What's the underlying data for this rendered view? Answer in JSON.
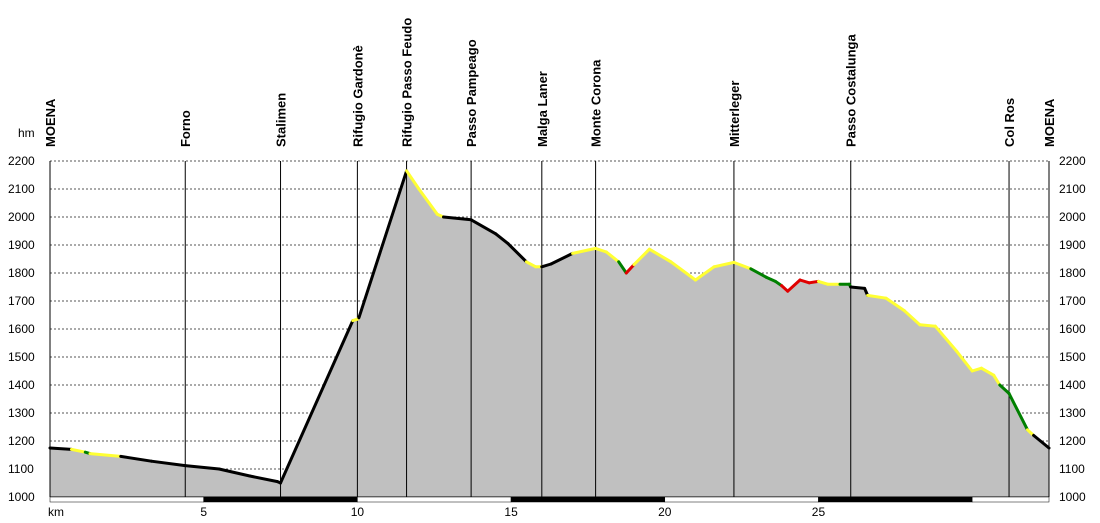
{
  "chart_data": {
    "type": "area",
    "y_unit": "hm",
    "x_unit": "km",
    "xlim": [
      0,
      32.5
    ],
    "ylim": [
      1000,
      2200
    ],
    "grid": true,
    "y_ticks": [
      1000,
      1100,
      1200,
      1300,
      1400,
      1500,
      1600,
      1700,
      1800,
      1900,
      2000,
      2100,
      2200
    ],
    "x_ticks": [
      5,
      10,
      15,
      20,
      25
    ],
    "fill_color": "#c0c0c0",
    "difficulty_colors": {
      "easy": "#ffff33",
      "medium": "#008000",
      "hard": "#e00000",
      "road": "#000000"
    },
    "waypoints": [
      {
        "name": "MOENA",
        "x": 0.0
      },
      {
        "name": "Forno",
        "x": 4.4
      },
      {
        "name": "Stalimen",
        "x": 7.5
      },
      {
        "name": "Rifugio Gardonè",
        "x": 10.0
      },
      {
        "name": "Rifugio Passo Feudo",
        "x": 11.6
      },
      {
        "name": "Passo Pampeago",
        "x": 13.7
      },
      {
        "name": "Malga Laner",
        "x": 16.0
      },
      {
        "name": "Monte Corona",
        "x": 17.75
      },
      {
        "name": "Mitterleger",
        "x": 22.25
      },
      {
        "name": "Passo Costalunga",
        "x": 26.05
      },
      {
        "name": "Col Ros",
        "x": 31.2
      },
      {
        "name": "MOENA",
        "x": 32.5
      }
    ],
    "profile": [
      {
        "x": 0.0,
        "y": 1175,
        "c": "road"
      },
      {
        "x": 0.7,
        "y": 1170,
        "c": "easy"
      },
      {
        "x": 1.15,
        "y": 1160,
        "c": "medium"
      },
      {
        "x": 1.3,
        "y": 1155,
        "c": "easy"
      },
      {
        "x": 2.3,
        "y": 1145,
        "c": "road"
      },
      {
        "x": 3.3,
        "y": 1128,
        "c": "road"
      },
      {
        "x": 4.4,
        "y": 1112,
        "c": "road"
      },
      {
        "x": 5.5,
        "y": 1100,
        "c": "road"
      },
      {
        "x": 6.5,
        "y": 1075,
        "c": "road"
      },
      {
        "x": 7.4,
        "y": 1055,
        "c": "road"
      },
      {
        "x": 7.5,
        "y": 1050,
        "c": "road"
      },
      {
        "x": 9.85,
        "y": 1630,
        "c": "easy"
      },
      {
        "x": 10.0,
        "y": 1635,
        "c": "easy"
      },
      {
        "x": 10.05,
        "y": 1640,
        "c": "road"
      },
      {
        "x": 11.6,
        "y": 2165,
        "c": "easy"
      },
      {
        "x": 12.0,
        "y": 2100,
        "c": "easy"
      },
      {
        "x": 12.6,
        "y": 2010,
        "c": "easy"
      },
      {
        "x": 12.8,
        "y": 2000,
        "c": "road"
      },
      {
        "x": 13.7,
        "y": 1990,
        "c": "road"
      },
      {
        "x": 14.5,
        "y": 1940,
        "c": "road"
      },
      {
        "x": 14.9,
        "y": 1905,
        "c": "road"
      },
      {
        "x": 15.5,
        "y": 1840,
        "c": "easy"
      },
      {
        "x": 15.8,
        "y": 1822,
        "c": "easy"
      },
      {
        "x": 16.0,
        "y": 1822,
        "c": "road"
      },
      {
        "x": 16.3,
        "y": 1832,
        "c": "road"
      },
      {
        "x": 17.0,
        "y": 1870,
        "c": "easy"
      },
      {
        "x": 17.75,
        "y": 1888,
        "c": "easy"
      },
      {
        "x": 18.1,
        "y": 1875,
        "c": "easy"
      },
      {
        "x": 18.5,
        "y": 1840,
        "c": "medium"
      },
      {
        "x": 18.75,
        "y": 1800,
        "c": "hard"
      },
      {
        "x": 19.0,
        "y": 1830,
        "c": "easy"
      },
      {
        "x": 19.5,
        "y": 1885,
        "c": "easy"
      },
      {
        "x": 20.2,
        "y": 1840,
        "c": "easy"
      },
      {
        "x": 21.0,
        "y": 1775,
        "c": "easy"
      },
      {
        "x": 21.6,
        "y": 1822,
        "c": "easy"
      },
      {
        "x": 22.25,
        "y": 1838,
        "c": "easy"
      },
      {
        "x": 22.8,
        "y": 1815,
        "c": "medium"
      },
      {
        "x": 23.3,
        "y": 1785,
        "c": "medium"
      },
      {
        "x": 23.6,
        "y": 1770,
        "c": "medium"
      },
      {
        "x": 23.8,
        "y": 1755,
        "c": "hard"
      },
      {
        "x": 24.0,
        "y": 1735,
        "c": "hard"
      },
      {
        "x": 24.4,
        "y": 1775,
        "c": "hard"
      },
      {
        "x": 24.7,
        "y": 1765,
        "c": "hard"
      },
      {
        "x": 25.0,
        "y": 1770,
        "c": "easy"
      },
      {
        "x": 25.3,
        "y": 1760,
        "c": "easy"
      },
      {
        "x": 25.7,
        "y": 1760,
        "c": "medium"
      },
      {
        "x": 26.0,
        "y": 1760,
        "c": "medium"
      },
      {
        "x": 26.05,
        "y": 1750,
        "c": "road"
      },
      {
        "x": 26.5,
        "y": 1745,
        "c": "road"
      },
      {
        "x": 26.6,
        "y": 1720,
        "c": "easy"
      },
      {
        "x": 27.2,
        "y": 1710,
        "c": "easy"
      },
      {
        "x": 27.8,
        "y": 1665,
        "c": "easy"
      },
      {
        "x": 28.3,
        "y": 1615,
        "c": "easy"
      },
      {
        "x": 28.8,
        "y": 1610,
        "c": "easy"
      },
      {
        "x": 29.5,
        "y": 1520,
        "c": "easy"
      },
      {
        "x": 30.0,
        "y": 1450,
        "c": "easy"
      },
      {
        "x": 30.3,
        "y": 1460,
        "c": "easy"
      },
      {
        "x": 30.7,
        "y": 1435,
        "c": "easy"
      },
      {
        "x": 30.9,
        "y": 1400,
        "c": "medium"
      },
      {
        "x": 31.2,
        "y": 1370,
        "c": "medium"
      },
      {
        "x": 31.8,
        "y": 1240,
        "c": "easy"
      },
      {
        "x": 32.0,
        "y": 1220,
        "c": "road"
      },
      {
        "x": 32.5,
        "y": 1175,
        "c": "road"
      }
    ]
  }
}
